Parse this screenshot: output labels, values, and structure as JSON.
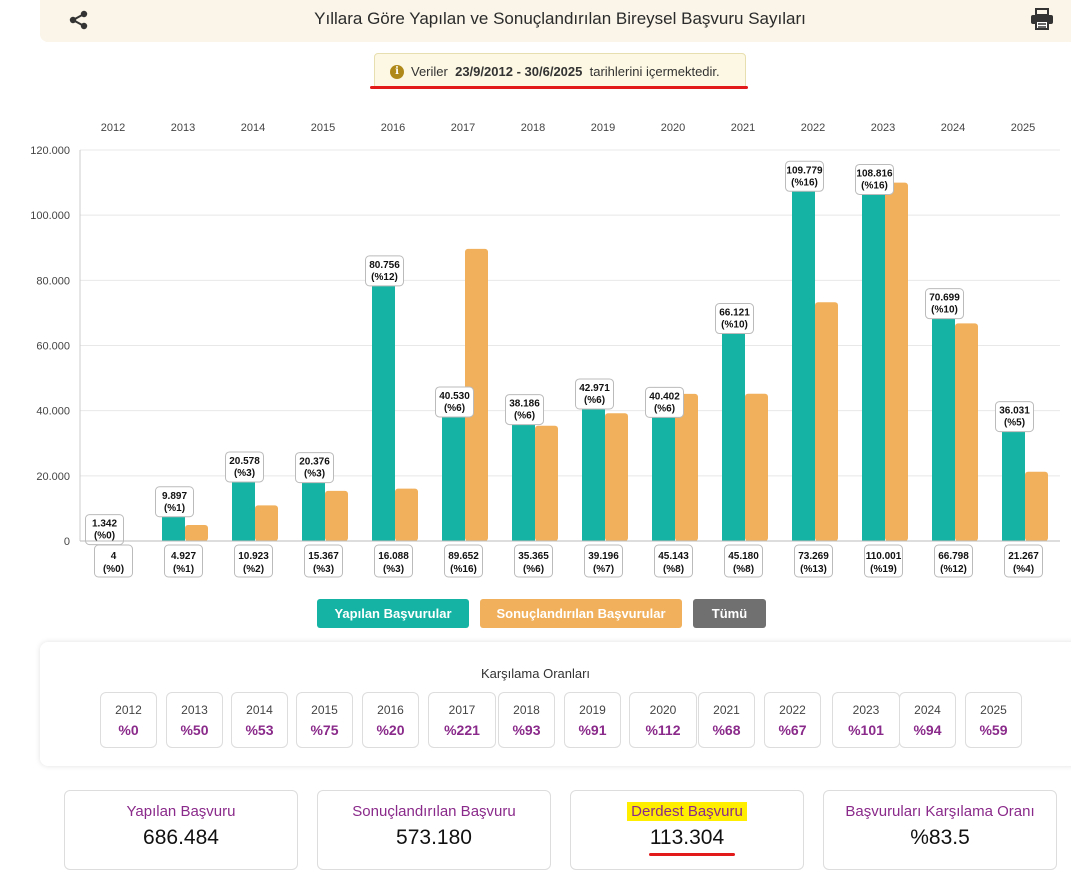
{
  "header": {
    "title": "Yıllara Göre Yapılan ve Sonuçlandırılan Bireysel Başvuru Sayıları",
    "share_icon": "share-icon",
    "print_icon": "print-icon"
  },
  "notice": {
    "prefix": "Veriler",
    "range_start": "23/9/2012",
    "separator": "-",
    "range_end": "30/6/2025",
    "suffix": "tarihlerini içermektedir."
  },
  "colors": {
    "filed": "#14b3a3",
    "concluded": "#f0b05c",
    "all": "#707070",
    "accent": "#8a2a8a",
    "highlight": "#ffee00",
    "red_mark": "#e21a1a"
  },
  "chart_data": {
    "type": "bar",
    "categories": [
      "2012",
      "2013",
      "2014",
      "2015",
      "2016",
      "2017",
      "2018",
      "2019",
      "2020",
      "2021",
      "2022",
      "2023",
      "2024",
      "2025"
    ],
    "series": [
      {
        "name": "Yapılan Başvurular",
        "values": [
          1342,
          9897,
          20578,
          20376,
          80756,
          40530,
          38186,
          42971,
          40402,
          66121,
          109779,
          108816,
          70699,
          36031
        ],
        "labels": [
          "1.342",
          "9.897",
          "20.578",
          "20.376",
          "80.756",
          "40.530",
          "38.186",
          "42.971",
          "40.402",
          "66.121",
          "109.779",
          "108.816",
          "70.699",
          "36.031"
        ],
        "pct": [
          "(%0)",
          "(%1)",
          "(%3)",
          "(%3)",
          "(%12)",
          "(%6)",
          "(%6)",
          "(%6)",
          "(%6)",
          "(%10)",
          "(%16)",
          "(%16)",
          "(%10)",
          "(%5)"
        ]
      },
      {
        "name": "Sonuçlandırılan Başvurular",
        "values": [
          4,
          4927,
          10923,
          15367,
          16088,
          89652,
          35365,
          39196,
          45143,
          45180,
          73269,
          110001,
          66798,
          21267
        ],
        "labels": [
          "4",
          "4.927",
          "10.923",
          "15.367",
          "16.088",
          "89.652",
          "35.365",
          "39.196",
          "45.143",
          "45.180",
          "73.269",
          "110.001",
          "66.798",
          "21.267"
        ],
        "pct": [
          "(%0)",
          "(%1)",
          "(%2)",
          "(%3)",
          "(%3)",
          "(%16)",
          "(%6)",
          "(%7)",
          "(%8)",
          "(%8)",
          "(%13)",
          "(%19)",
          "(%12)",
          "(%4)"
        ]
      }
    ],
    "ylim": [
      0,
      120000
    ],
    "yticks": [
      "0",
      "20.000",
      "40.000",
      "60.000",
      "80.000",
      "100.000",
      "120.000"
    ],
    "grid": true,
    "x_axis_position": "top"
  },
  "legend": {
    "filed_label": "Yapılan Başvurular",
    "concluded_label": "Sonuçlandırılan Başvurular",
    "all_label": "Tümü"
  },
  "ratios": {
    "title": "Karşılama Oranları",
    "items": [
      {
        "year": "2012",
        "pct": "%0"
      },
      {
        "year": "2013",
        "pct": "%50"
      },
      {
        "year": "2014",
        "pct": "%53"
      },
      {
        "year": "2015",
        "pct": "%75"
      },
      {
        "year": "2016",
        "pct": "%20"
      },
      {
        "year": "2017",
        "pct": "%221"
      },
      {
        "year": "2018",
        "pct": "%93"
      },
      {
        "year": "2019",
        "pct": "%91"
      },
      {
        "year": "2020",
        "pct": "%112"
      },
      {
        "year": "2021",
        "pct": "%68"
      },
      {
        "year": "2022",
        "pct": "%67"
      },
      {
        "year": "2023",
        "pct": "%101"
      },
      {
        "year": "2024",
        "pct": "%94"
      },
      {
        "year": "2025",
        "pct": "%59"
      }
    ]
  },
  "stats": [
    {
      "label": "Yapılan Başvuru",
      "value": "686.484"
    },
    {
      "label": "Sonuçlandırılan Başvuru",
      "value": "573.180"
    },
    {
      "label": "Derdest Başvuru",
      "value": "113.304"
    },
    {
      "label": "Başvuruları Karşılama Oranı",
      "value": "%83.5"
    }
  ]
}
